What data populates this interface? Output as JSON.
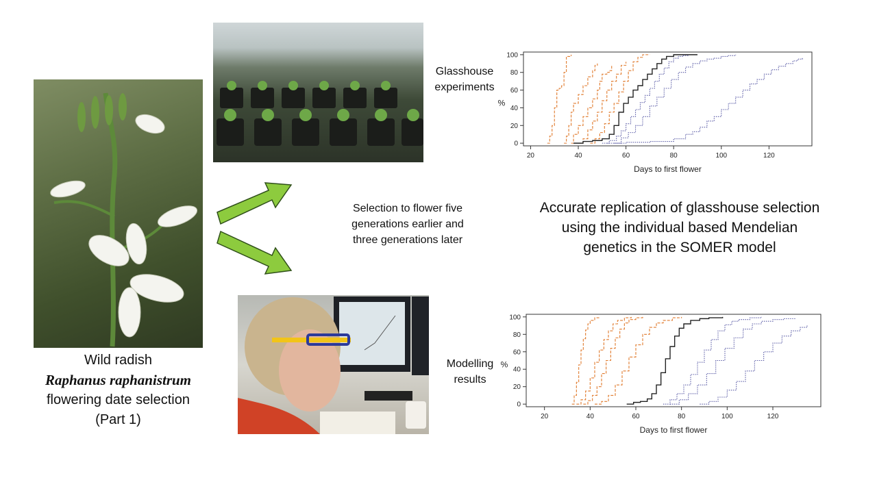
{
  "caption": {
    "line1": "Wild radish",
    "line2": "Raphanus raphanistrum",
    "line3": "flowering date selection",
    "line4": "(Part 1)"
  },
  "labels": {
    "glasshouse": [
      "Glasshouse",
      "experiments"
    ],
    "modelling": [
      "Modelling",
      "results"
    ],
    "selection": [
      "Selection to flower  five",
      "generations earlier and",
      "three generations later"
    ],
    "accurate": [
      "Accurate replication of glasshouse selection",
      "using the individual based Mendelian",
      "genetics in the SOMER model"
    ]
  },
  "colors": {
    "arrow_fill": "#8dcb3e",
    "arrow_stroke": "#2f4f1a",
    "orange": "#e07a2c",
    "black": "#222222",
    "blue": "#5a5ba6"
  },
  "chart_data": [
    {
      "type": "line",
      "title": "",
      "xlabel": "Days to first flower",
      "ylabel": "%",
      "xlim": [
        17,
        138
      ],
      "ylim": [
        -3,
        103
      ],
      "xticks": [
        20,
        40,
        60,
        80,
        100,
        120
      ],
      "yticks": [
        0,
        20,
        40,
        60,
        80,
        100
      ],
      "series": [
        {
          "color": "orange",
          "dash": "dashed",
          "points": [
            [
              27,
              0
            ],
            [
              28,
              8
            ],
            [
              29,
              20
            ],
            [
              30,
              40
            ],
            [
              31,
              60
            ],
            [
              32,
              62
            ],
            [
              33,
              65
            ],
            [
              34,
              80
            ],
            [
              35,
              98
            ],
            [
              37,
              100
            ]
          ]
        },
        {
          "color": "orange",
          "dash": "dashed",
          "points": [
            [
              34,
              0
            ],
            [
              35,
              8
            ],
            [
              36,
              20
            ],
            [
              37,
              35
            ],
            [
              38,
              45
            ],
            [
              40,
              55
            ],
            [
              42,
              65
            ],
            [
              44,
              75
            ],
            [
              46,
              82
            ],
            [
              47,
              88
            ],
            [
              48,
              90
            ]
          ]
        },
        {
          "color": "orange",
          "dash": "dashed",
          "points": [
            [
              37,
              0
            ],
            [
              38,
              10
            ],
            [
              40,
              20
            ],
            [
              42,
              30
            ],
            [
              44,
              40
            ],
            [
              46,
              50
            ],
            [
              48,
              60
            ],
            [
              49,
              70
            ],
            [
              50,
              78
            ],
            [
              52,
              80
            ],
            [
              53,
              82
            ],
            [
              54,
              88
            ]
          ]
        },
        {
          "color": "orange",
          "dash": "dashed",
          "points": [
            [
              40,
              0
            ],
            [
              42,
              5
            ],
            [
              44,
              15
            ],
            [
              46,
              25
            ],
            [
              48,
              35
            ],
            [
              50,
              48
            ],
            [
              52,
              60
            ],
            [
              54,
              70
            ],
            [
              56,
              78
            ],
            [
              58,
              88
            ],
            [
              60,
              92
            ]
          ]
        },
        {
          "color": "orange",
          "dash": "dashed",
          "points": [
            [
              45,
              0
            ],
            [
              47,
              5
            ],
            [
              49,
              12
            ],
            [
              51,
              22
            ],
            [
              53,
              35
            ],
            [
              55,
              45
            ],
            [
              57,
              58
            ],
            [
              59,
              70
            ],
            [
              61,
              82
            ],
            [
              63,
              92
            ],
            [
              65,
              97
            ],
            [
              67,
              100
            ],
            [
              70,
              100
            ]
          ]
        },
        {
          "color": "black",
          "dash": "solid",
          "points": [
            [
              38,
              0
            ],
            [
              42,
              2
            ],
            [
              46,
              3
            ],
            [
              50,
              5
            ],
            [
              53,
              10
            ],
            [
              55,
              20
            ],
            [
              57,
              35
            ],
            [
              59,
              45
            ],
            [
              61,
              52
            ],
            [
              63,
              60
            ],
            [
              65,
              65
            ],
            [
              67,
              72
            ],
            [
              69,
              78
            ],
            [
              71,
              84
            ],
            [
              73,
              90
            ],
            [
              75,
              95
            ],
            [
              77,
              98
            ],
            [
              80,
              100
            ],
            [
              90,
              100
            ]
          ]
        },
        {
          "color": "blue",
          "dash": "dotted",
          "points": [
            [
              50,
              0
            ],
            [
              53,
              3
            ],
            [
              56,
              8
            ],
            [
              58,
              14
            ],
            [
              60,
              22
            ],
            [
              62,
              30
            ],
            [
              64,
              38
            ],
            [
              66,
              46
            ],
            [
              68,
              54
            ],
            [
              70,
              62
            ],
            [
              72,
              70
            ],
            [
              74,
              78
            ],
            [
              76,
              85
            ],
            [
              78,
              92
            ],
            [
              80,
              96
            ],
            [
              82,
              98
            ],
            [
              84,
              99
            ],
            [
              86,
              100
            ]
          ]
        },
        {
          "color": "blue",
          "dash": "dotted",
          "points": [
            [
              55,
              0
            ],
            [
              58,
              6
            ],
            [
              61,
              12
            ],
            [
              64,
              20
            ],
            [
              67,
              30
            ],
            [
              70,
              42
            ],
            [
              73,
              52
            ],
            [
              76,
              62
            ],
            [
              79,
              72
            ],
            [
              82,
              80
            ],
            [
              85,
              86
            ],
            [
              88,
              90
            ],
            [
              91,
              93
            ],
            [
              94,
              95
            ],
            [
              97,
              96
            ],
            [
              100,
              98
            ],
            [
              103,
              99
            ],
            [
              106,
              100
            ]
          ]
        },
        {
          "color": "blue",
          "dash": "dotted",
          "points": [
            [
              52,
              0
            ],
            [
              60,
              1
            ],
            [
              70,
              2
            ],
            [
              80,
              5
            ],
            [
              85,
              10
            ],
            [
              88,
              13
            ],
            [
              91,
              18
            ],
            [
              94,
              25
            ],
            [
              97,
              30
            ],
            [
              100,
              38
            ],
            [
              103,
              45
            ],
            [
              106,
              52
            ],
            [
              109,
              60
            ],
            [
              112,
              67
            ],
            [
              115,
              72
            ],
            [
              118,
              78
            ],
            [
              121,
              83
            ],
            [
              124,
              87
            ],
            [
              127,
              90
            ],
            [
              130,
              93
            ],
            [
              132,
              95
            ],
            [
              134,
              97
            ]
          ]
        }
      ]
    },
    {
      "type": "line",
      "title": "",
      "xlabel": "Days to first flower",
      "ylabel": "%",
      "xlim": [
        12,
        141
      ],
      "ylim": [
        -3,
        103
      ],
      "xticks": [
        20,
        40,
        60,
        80,
        100,
        120
      ],
      "yticks": [
        0,
        20,
        40,
        60,
        80,
        100
      ],
      "series": [
        {
          "color": "orange",
          "dash": "dashed",
          "points": [
            [
              32,
              0
            ],
            [
              33,
              10
            ],
            [
              34,
              25
            ],
            [
              35,
              45
            ],
            [
              36,
              62
            ],
            [
              37,
              75
            ],
            [
              38,
              85
            ],
            [
              39,
              92
            ],
            [
              40,
              96
            ],
            [
              42,
              99
            ],
            [
              44,
              100
            ]
          ]
        },
        {
          "color": "orange",
          "dash": "dashed",
          "points": [
            [
              34,
              0
            ],
            [
              36,
              5
            ],
            [
              38,
              15
            ],
            [
              40,
              30
            ],
            [
              42,
              48
            ],
            [
              44,
              62
            ],
            [
              46,
              74
            ],
            [
              48,
              84
            ],
            [
              50,
              92
            ],
            [
              52,
              96
            ],
            [
              55,
              99
            ],
            [
              58,
              100
            ]
          ]
        },
        {
          "color": "orange",
          "dash": "dashed",
          "points": [
            [
              37,
              0
            ],
            [
              39,
              4
            ],
            [
              41,
              10
            ],
            [
              43,
              20
            ],
            [
              45,
              35
            ],
            [
              47,
              50
            ],
            [
              49,
              64
            ],
            [
              51,
              76
            ],
            [
              53,
              86
            ],
            [
              55,
              93
            ],
            [
              57,
              97
            ],
            [
              60,
              99
            ],
            [
              63,
              100
            ]
          ]
        },
        {
          "color": "orange",
          "dash": "dashed",
          "points": [
            [
              42,
              0
            ],
            [
              45,
              3
            ],
            [
              48,
              10
            ],
            [
              51,
              22
            ],
            [
              54,
              38
            ],
            [
              57,
              54
            ],
            [
              60,
              68
            ],
            [
              63,
              80
            ],
            [
              66,
              88
            ],
            [
              69,
              93
            ],
            [
              72,
              96
            ],
            [
              76,
              99
            ],
            [
              80,
              100
            ]
          ]
        },
        {
          "color": "black",
          "dash": "solid",
          "points": [
            [
              56,
              0
            ],
            [
              59,
              2
            ],
            [
              62,
              3
            ],
            [
              65,
              6
            ],
            [
              67,
              12
            ],
            [
              69,
              22
            ],
            [
              71,
              36
            ],
            [
              73,
              52
            ],
            [
              75,
              66
            ],
            [
              77,
              78
            ],
            [
              79,
              87
            ],
            [
              81,
              92
            ],
            [
              84,
              96
            ],
            [
              88,
              98
            ],
            [
              92,
              99
            ],
            [
              98,
              100
            ]
          ]
        },
        {
          "color": "blue",
          "dash": "dotted",
          "points": [
            [
              72,
              0
            ],
            [
              75,
              5
            ],
            [
              78,
              12
            ],
            [
              81,
              22
            ],
            [
              84,
              34
            ],
            [
              87,
              48
            ],
            [
              90,
              62
            ],
            [
              93,
              74
            ],
            [
              96,
              84
            ],
            [
              99,
              91
            ],
            [
              102,
              95
            ],
            [
              105,
              97
            ],
            [
              110,
              99
            ],
            [
              115,
              100
            ]
          ]
        },
        {
          "color": "blue",
          "dash": "dotted",
          "points": [
            [
              75,
              0
            ],
            [
              79,
              5
            ],
            [
              83,
              12
            ],
            [
              87,
              22
            ],
            [
              91,
              35
            ],
            [
              95,
              50
            ],
            [
              99,
              64
            ],
            [
              103,
              76
            ],
            [
              107,
              86
            ],
            [
              111,
              92
            ],
            [
              115,
              95
            ],
            [
              120,
              97
            ],
            [
              125,
              98
            ],
            [
              130,
              98
            ]
          ]
        },
        {
          "color": "blue",
          "dash": "dotted",
          "points": [
            [
              88,
              0
            ],
            [
              92,
              3
            ],
            [
              96,
              8
            ],
            [
              100,
              16
            ],
            [
              104,
              26
            ],
            [
              108,
              38
            ],
            [
              112,
              50
            ],
            [
              116,
              60
            ],
            [
              120,
              70
            ],
            [
              124,
              78
            ],
            [
              128,
              84
            ],
            [
              132,
              88
            ],
            [
              135,
              90
            ]
          ]
        }
      ]
    }
  ]
}
